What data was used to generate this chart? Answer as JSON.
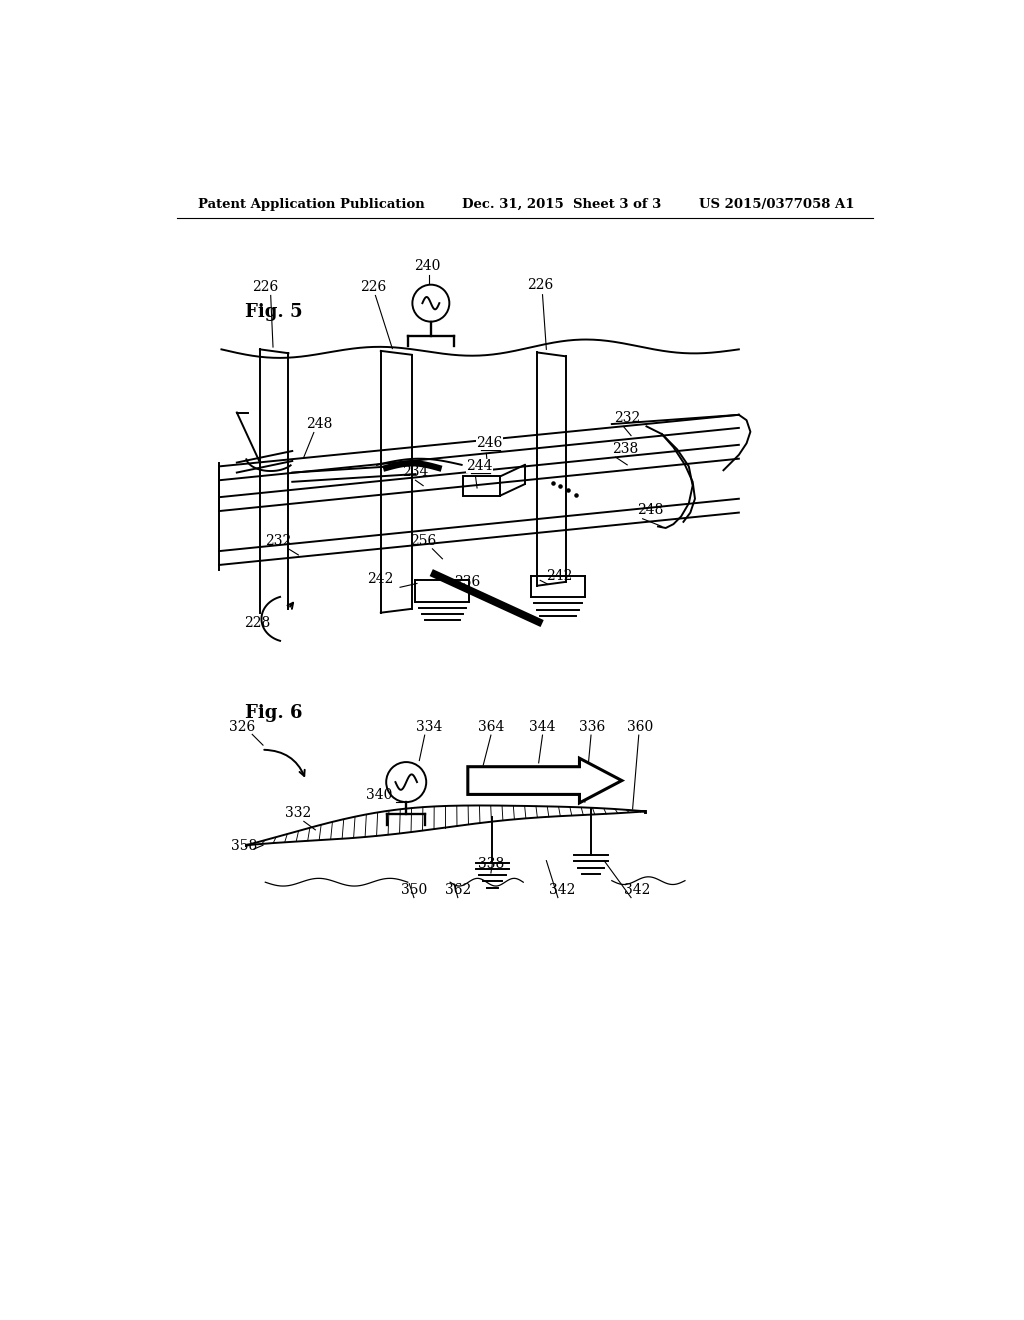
{
  "bg_color": "#ffffff",
  "header_left": "Patent Application Publication",
  "header_center": "Dec. 31, 2015  Sheet 3 of 3",
  "header_right": "US 2015/0377058 A1",
  "fig5_label": "Fig. 5",
  "fig6_label": "Fig. 6"
}
